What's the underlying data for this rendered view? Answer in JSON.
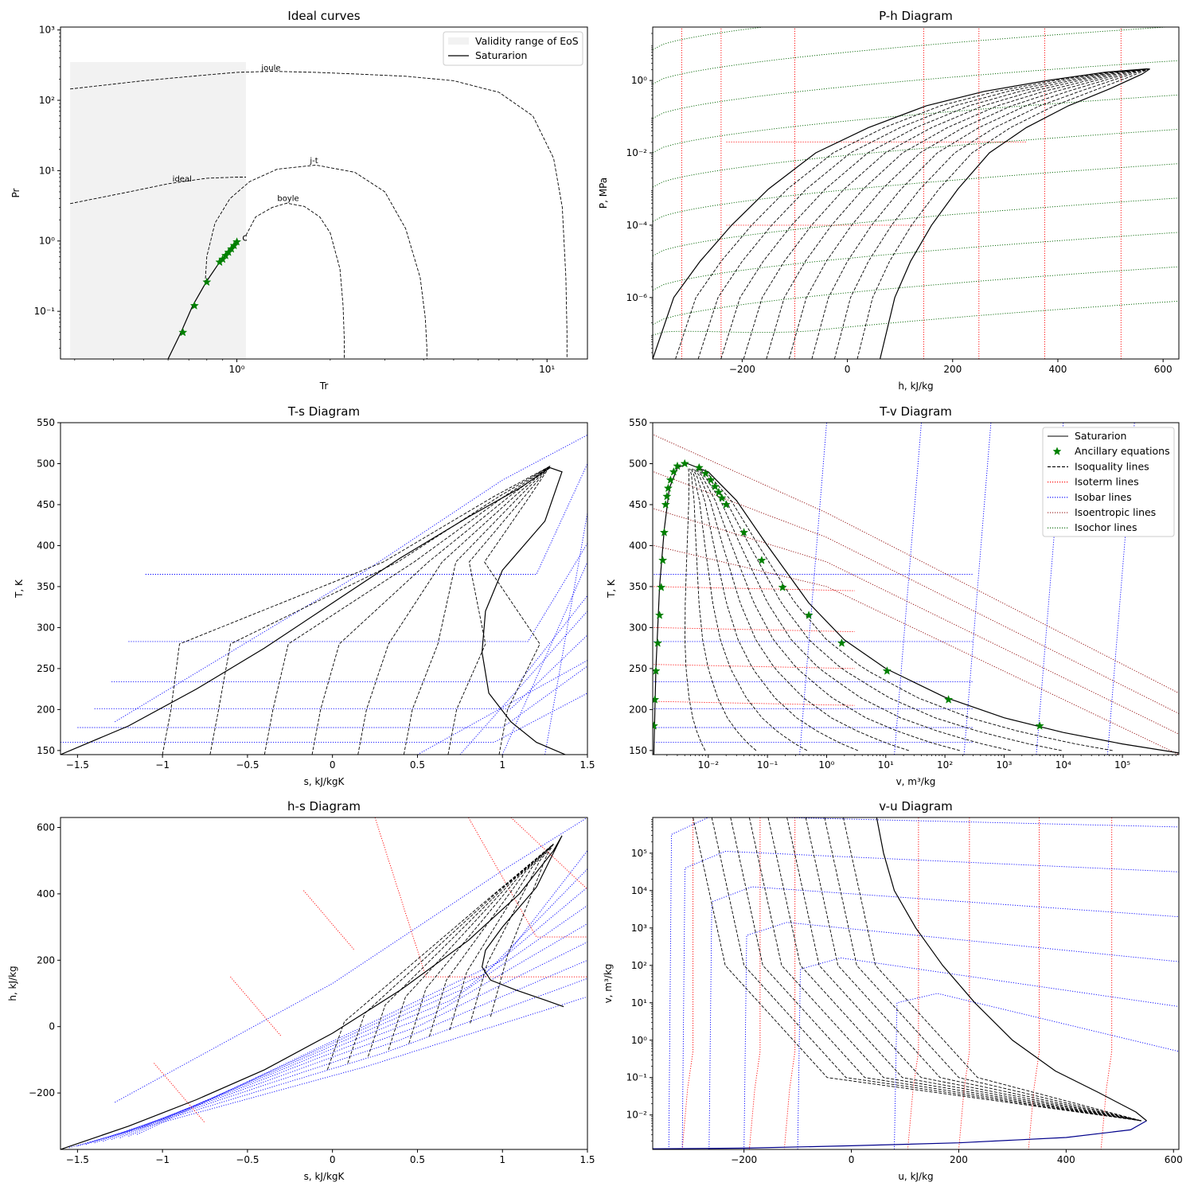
{
  "chart_data": [
    {
      "id": "p1",
      "type": "line",
      "title": "Ideal curves",
      "xlabel": "Tr",
      "ylabel": "Pr",
      "xscale": "log",
      "yscale": "log",
      "xlim": [
        0.27,
        13.5
      ],
      "ylim": [
        0.021,
        1100
      ],
      "legend": {
        "position": "top-right",
        "entries": [
          "Validity range of EoS",
          "Saturarion"
        ]
      },
      "validity_range": {
        "x": [
          0.29,
          1.07
        ],
        "y": [
          0.021,
          350
        ]
      },
      "curves": [
        {
          "name": "joule",
          "style": "dashed",
          "x": [
            0.29,
            0.5,
            0.8,
            1.0,
            1.3,
            1.8,
            2.5,
            3.5,
            5.0,
            7.0,
            9.0,
            10.5,
            11.2,
            11.5,
            11.6,
            11.6
          ],
          "y": [
            145,
            190,
            230,
            250,
            258,
            250,
            235,
            220,
            190,
            130,
            60,
            15,
            3,
            0.3,
            0.05,
            0.021
          ]
        },
        {
          "name": "ideal",
          "style": "dashed",
          "x": [
            0.29,
            0.45,
            0.6,
            0.8,
            1.0,
            1.07
          ],
          "y": [
            3.4,
            5.0,
            6.5,
            7.8,
            8.1,
            8.1
          ]
        },
        {
          "name": "j-t",
          "style": "dashed",
          "x": [
            0.79,
            0.8,
            0.85,
            0.95,
            1.1,
            1.35,
            1.8,
            2.4,
            3.0,
            3.5,
            3.9,
            4.05,
            4.1,
            4.1
          ],
          "y": [
            0.25,
            0.6,
            1.8,
            4.0,
            7.0,
            10.5,
            12.0,
            9.5,
            5.0,
            1.5,
            0.3,
            0.08,
            0.03,
            0.021
          ]
        },
        {
          "name": "boyle",
          "style": "dashed",
          "x": [
            1.07,
            1.15,
            1.3,
            1.45,
            1.65,
            1.85,
            2.0,
            2.15,
            2.2,
            2.22,
            2.22
          ],
          "y": [
            1.2,
            2.2,
            3.0,
            3.45,
            3.1,
            2.2,
            1.3,
            0.4,
            0.12,
            0.04,
            0.021
          ]
        },
        {
          "name": "Saturarion",
          "style": "solid",
          "x": [
            0.6,
            0.66,
            0.72,
            0.8,
            0.88,
            0.95,
            1.0
          ],
          "y": [
            0.021,
            0.05,
            0.12,
            0.27,
            0.5,
            0.75,
            1.0
          ]
        }
      ],
      "annotations": [
        "joule",
        "ideal",
        "j-t",
        "boyle",
        "c"
      ],
      "ancillary_points": {
        "x": [
          0.67,
          0.73,
          0.8,
          0.88,
          0.9,
          0.92,
          0.94,
          0.96,
          0.98,
          1.0
        ],
        "y": [
          0.05,
          0.12,
          0.26,
          0.5,
          0.55,
          0.62,
          0.69,
          0.77,
          0.86,
          0.97
        ]
      },
      "xticks": [
        1,
        10
      ],
      "yticks": [
        0.1,
        1,
        10,
        100,
        1000
      ]
    },
    {
      "id": "p2",
      "type": "line",
      "title": "P-h Diagram",
      "xlabel": "h, kJ/kg",
      "ylabel": "P, MPa",
      "yscale": "log",
      "xlim": [
        -370,
        630
      ],
      "ylim": [
        2e-08,
        30
      ],
      "saturation": {
        "liquid": {
          "x": [
            -370,
            -330,
            -280,
            -220,
            -150,
            -60,
            40,
            150,
            260,
            380,
            490,
            570
          ],
          "y": [
            2e-08,
            1e-06,
            1e-05,
            0.0001,
            0.001,
            0.01,
            0.05,
            0.2,
            0.5,
            1.0,
            1.7,
            2.1
          ]
        },
        "vapor": {
          "x": [
            62,
            90,
            120,
            160,
            210,
            270,
            340,
            420,
            500,
            560,
            575
          ],
          "y": [
            2e-08,
            1e-06,
            1e-05,
            0.0001,
            0.001,
            0.01,
            0.05,
            0.2,
            0.6,
            1.5,
            2.1
          ]
        }
      },
      "isoquality_count": 9,
      "isotherm_h": [
        -315,
        -240,
        -100,
        145,
        250,
        375,
        520
      ],
      "isochor_count": 11,
      "xticks": [
        -200,
        0,
        200,
        400,
        600
      ],
      "yticks": [
        1e-06,
        0.0001,
        0.01,
        1
      ]
    },
    {
      "id": "p3",
      "type": "line",
      "title": "T-s Diagram",
      "xlabel": "s, kJ/kgK",
      "ylabel": "T, K",
      "xlim": [
        -1.6,
        1.5
      ],
      "ylim": [
        145,
        550
      ],
      "saturation": {
        "x": [
          -1.6,
          -1.2,
          -0.8,
          -0.4,
          0.0,
          0.4,
          0.8,
          1.1,
          1.28,
          1.35,
          1.25,
          1.0,
          0.9,
          0.88,
          0.92,
          1.05,
          1.2,
          1.37
        ],
        "y": [
          145,
          180,
          225,
          275,
          330,
          385,
          435,
          470,
          495,
          490,
          430,
          370,
          320,
          270,
          220,
          185,
          160,
          145
        ]
      },
      "isoquality_s_bottom": [
        -1.0,
        -0.72,
        -0.4,
        -0.12,
        0.15,
        0.42,
        0.68,
        0.98
      ],
      "isobar_T": [
        160,
        178,
        201,
        234,
        283,
        365
      ],
      "xticks": [
        -1.5,
        -1.0,
        -0.5,
        0.0,
        0.5,
        1.0,
        1.5
      ],
      "yticks": [
        150,
        200,
        250,
        300,
        350,
        400,
        450,
        500,
        550
      ]
    },
    {
      "id": "p4",
      "type": "line",
      "title": "T-v Diagram",
      "xlabel": "v, m³/kg",
      "ylabel": "T, K",
      "xscale": "log",
      "xlim": [
        0.00115,
        900000
      ],
      "ylim": [
        145,
        550
      ],
      "legend": {
        "position": "top-right",
        "entries": [
          "Saturarion",
          "Ancillary equations",
          "Isoquality lines",
          "Isoterm lines",
          "Isobar lines",
          "Isoentropic lines",
          "Isochor lines"
        ]
      },
      "saturation_liquid": {
        "x": [
          0.0012,
          0.0013,
          0.0015,
          0.0018,
          0.0022,
          0.003,
          0.0045
        ],
        "y": [
          145,
          250,
          350,
          420,
          470,
          495,
          500
        ]
      },
      "saturation_vapor": {
        "x": [
          0.0045,
          0.01,
          0.03,
          0.1,
          0.5,
          2,
          10,
          100,
          1000,
          10000,
          100000,
          900000
        ],
        "y": [
          500,
          490,
          455,
          400,
          330,
          285,
          250,
          215,
          190,
          172,
          158,
          147
        ]
      },
      "ancillary_points": {
        "x": [
          0.0012,
          0.00125,
          0.0013,
          0.0014,
          0.0015,
          0.0016,
          0.0017,
          0.0018,
          0.0019,
          0.002,
          0.0021,
          0.0023,
          0.0026,
          0.003,
          0.004,
          0.007,
          0.009,
          0.011,
          0.013,
          0.015,
          0.017,
          0.02,
          0.04,
          0.08,
          0.18,
          0.5,
          1.8,
          10.5,
          115,
          4000
        ],
        "y": [
          180,
          212,
          247,
          281,
          315,
          349,
          382,
          416,
          450,
          460,
          470,
          480,
          490,
          497,
          500,
          495,
          488,
          480,
          472,
          465,
          458,
          450,
          416,
          382,
          349,
          315,
          281,
          247,
          212,
          180
        ]
      },
      "xticks": [
        0.01,
        0.1,
        1,
        10,
        100,
        1000,
        10000,
        100000
      ],
      "yticks": [
        150,
        200,
        250,
        300,
        350,
        400,
        450,
        500,
        550
      ]
    },
    {
      "id": "p5",
      "type": "line",
      "title": "h-s Diagram",
      "xlabel": "s, kJ/kgK",
      "ylabel": "h, kJ/kg",
      "xlim": [
        -1.6,
        1.5
      ],
      "ylim": [
        -370,
        630
      ],
      "saturation": {
        "x": [
          -1.6,
          -1.2,
          -0.8,
          -0.4,
          0.0,
          0.4,
          0.8,
          1.1,
          1.3,
          1.35,
          1.2,
          1.0,
          0.9,
          0.88,
          0.93,
          1.08,
          1.25,
          1.36
        ],
        "y": [
          -370,
          -300,
          -220,
          -130,
          -20,
          110,
          260,
          400,
          530,
          575,
          420,
          300,
          230,
          180,
          140,
          110,
          80,
          60
        ]
      },
      "xticks": [
        -1.5,
        -1.0,
        -0.5,
        0.0,
        0.5,
        1.0,
        1.5
      ],
      "yticks": [
        -200,
        0,
        200,
        400,
        600
      ]
    },
    {
      "id": "p6",
      "type": "line",
      "title": "v-u Diagram",
      "xlabel": "u, kJ/kg",
      "ylabel": "v, m³/kg",
      "yscale": "log",
      "xlim": [
        -370,
        610
      ],
      "ylim": [
        0.0012,
        900000
      ],
      "saturation_liquid": {
        "x": [
          -370,
          -200,
          0,
          200,
          400,
          520,
          550
        ],
        "y": [
          0.00125,
          0.0013,
          0.0015,
          0.0018,
          0.0025,
          0.004,
          0.007
        ]
      },
      "saturation_vapor": {
        "x": [
          47,
          60,
          80,
          120,
          170,
          230,
          300,
          380,
          460,
          530,
          550
        ],
        "y": [
          900000,
          100000,
          10000,
          1000,
          100,
          10,
          1,
          0.15,
          0.04,
          0.012,
          0.007
        ]
      },
      "isotherm_u": [
        -295,
        -170,
        -105,
        125,
        220,
        350,
        485
      ],
      "isobar_start_u": [
        -340,
        -315,
        -265,
        -200,
        -100,
        80
      ],
      "xticks": [
        -200,
        0,
        200,
        400,
        600
      ],
      "yticks": [
        0.01,
        0.1,
        1,
        10,
        100,
        1000,
        10000,
        100000
      ]
    }
  ],
  "colors": {
    "saturation": "#000000",
    "ancillary": "#008000",
    "isoquality": "#000000",
    "isotherm": "#ff0000",
    "isobar": "#0000ff",
    "isentropic": "#8b0000",
    "isochor": "#006400",
    "validity": "#f2f2f2"
  }
}
